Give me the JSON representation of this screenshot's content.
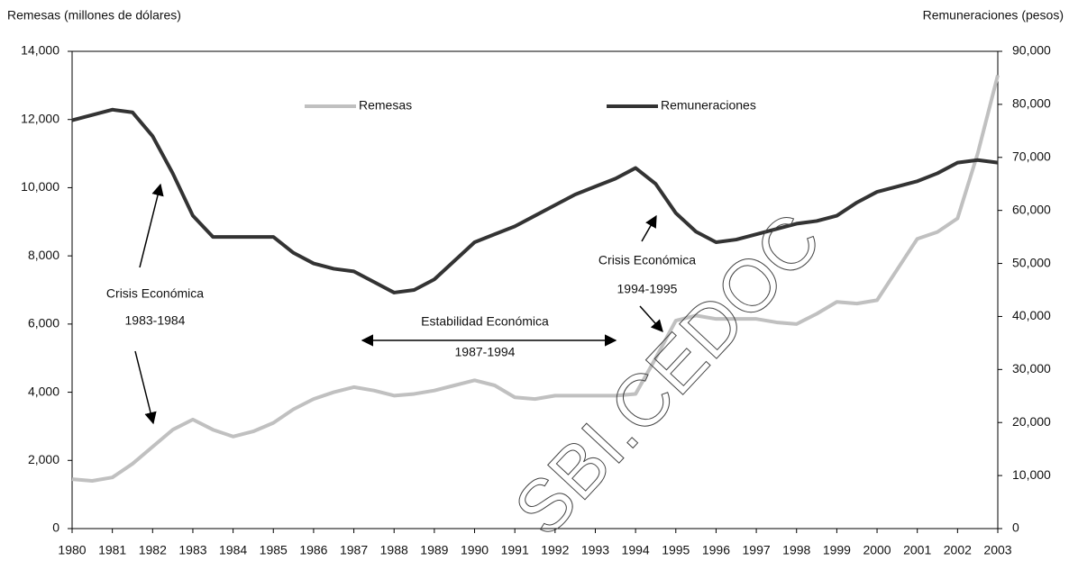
{
  "chart_data": {
    "type": "line",
    "y_label": "Remesas (millones de dólares)",
    "y2_label": "Remuneraciones (pesos)",
    "x": [
      1980,
      1980.5,
      1981,
      1981.5,
      1982,
      1982.5,
      1983,
      1983.5,
      1984,
      1984.5,
      1985,
      1985.5,
      1986,
      1986.5,
      1987,
      1987.5,
      1988,
      1988.5,
      1989,
      1989.5,
      1990,
      1990.5,
      1991,
      1991.5,
      1992,
      1992.5,
      1993,
      1993.5,
      1994,
      1994.5,
      1995,
      1995.5,
      1996,
      1996.5,
      1997,
      1997.5,
      1998,
      1998.5,
      1999,
      1999.5,
      2000,
      2000.5,
      2001,
      2001.5,
      2002,
      2002.5,
      2003
    ],
    "series": [
      {
        "name": "Remesas",
        "color": "#c0c0c0",
        "axis": "y",
        "values": [
          1450,
          1400,
          1500,
          1900,
          2400,
          2900,
          3200,
          2900,
          2700,
          2850,
          3100,
          3500,
          3800,
          4000,
          4150,
          4050,
          3900,
          3950,
          4050,
          4200,
          4350,
          4200,
          3850,
          3800,
          3900,
          3900,
          3900,
          3900,
          3950,
          5000,
          6100,
          6250,
          6150,
          6150,
          6150,
          6050,
          6000,
          6300,
          6650,
          6600,
          6700,
          7600,
          8500,
          8700,
          9100,
          11000,
          13300
        ]
      },
      {
        "name": "Remuneraciones",
        "color": "#333333",
        "axis": "y2",
        "values": [
          77000,
          78000,
          79000,
          78500,
          74000,
          67000,
          59000,
          55000,
          55000,
          55000,
          55000,
          52000,
          50000,
          49000,
          48500,
          46500,
          44500,
          45000,
          47000,
          50500,
          54000,
          55500,
          57000,
          59000,
          61000,
          63000,
          64500,
          66000,
          68000,
          65000,
          59500,
          56000,
          54000,
          54500,
          55500,
          56500,
          57500,
          58000,
          59000,
          61500,
          63500,
          64500,
          65500,
          67000,
          69000,
          69500,
          69000
        ]
      }
    ],
    "xlim": [
      1980,
      2003
    ],
    "xticks": [
      1980,
      1981,
      1982,
      1983,
      1984,
      1985,
      1986,
      1987,
      1988,
      1989,
      1990,
      1991,
      1992,
      1993,
      1994,
      1995,
      1996,
      1997,
      1998,
      1999,
      2000,
      2001,
      2002,
      2003
    ],
    "ylim": [
      0,
      14000
    ],
    "yticks": [
      0,
      {
        "value": 2000,
        "label": "2,000"
      },
      {
        "value": 4000,
        "label": "4,000"
      },
      {
        "value": 6000,
        "label": "6,000"
      },
      {
        "value": 8000,
        "label": "8,000"
      },
      {
        "value": 10000,
        "label": "10,000"
      },
      {
        "value": 12000,
        "label": "12,000"
      },
      {
        "value": 14000,
        "label": "14,000"
      }
    ],
    "y2lim": [
      0,
      90000
    ],
    "y2ticks": [
      0,
      {
        "value": 10000,
        "label": "10,000"
      },
      {
        "value": 20000,
        "label": "20,000"
      },
      {
        "value": 30000,
        "label": "30,000"
      },
      {
        "value": 40000,
        "label": "40,000"
      },
      {
        "value": 50000,
        "label": "50,000"
      },
      {
        "value": 60000,
        "label": "60,000"
      },
      {
        "value": 70000,
        "label": "70,000"
      },
      {
        "value": 80000,
        "label": "80,000"
      },
      {
        "value": 90000,
        "label": "90,000"
      }
    ],
    "annotations": [
      "Crisis Económica",
      "1983-1984",
      "Estabilidad Económica",
      "1987-1994",
      "Crisis Económica",
      "1994-1995"
    ],
    "watermark": "SBI.CEDOC"
  }
}
